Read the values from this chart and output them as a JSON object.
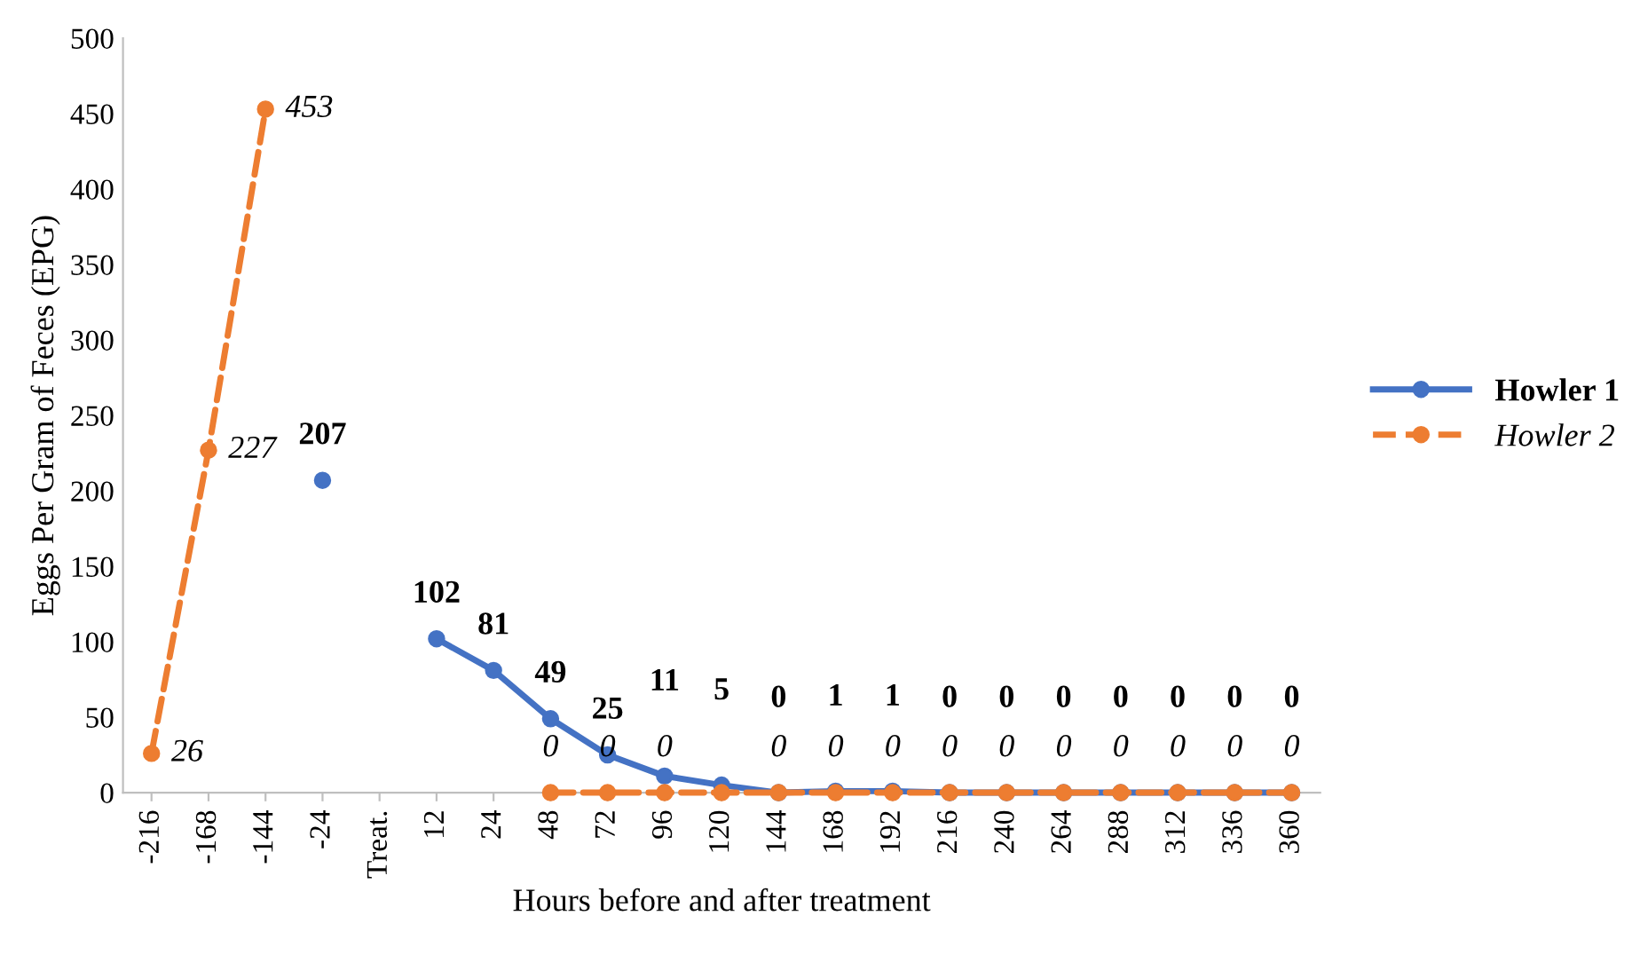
{
  "chart_data": {
    "type": "line",
    "xlabel": "Hours before and after treatment",
    "ylabel": "Eggs Per Gram of Feces (EPG)",
    "categories": [
      "-216",
      "-168",
      "-144",
      "-24",
      "Treat.",
      "12",
      "24",
      "48",
      "72",
      "96",
      "120",
      "144",
      "168",
      "192",
      "216",
      "240",
      "264",
      "288",
      "312",
      "336",
      "360"
    ],
    "series": [
      {
        "name": "Howler 1",
        "color": "#4472c4",
        "line_style": "solid",
        "values": [
          null,
          null,
          null,
          207,
          null,
          102,
          81,
          49,
          25,
          11,
          5,
          0,
          1,
          1,
          0,
          0,
          0,
          0,
          0,
          0,
          0
        ],
        "value_labels": [
          null,
          null,
          null,
          "207",
          null,
          "102",
          "81",
          "49",
          "25",
          "11",
          "5",
          "0",
          "1",
          "1",
          "0",
          "0",
          "0",
          "0",
          "0",
          "0",
          "0"
        ]
      },
      {
        "name": "Howler 2",
        "color": "#ed7d31",
        "line_style": "dashed",
        "values": [
          26,
          227,
          453,
          null,
          null,
          null,
          null,
          0,
          0,
          0,
          0,
          0,
          0,
          0,
          0,
          0,
          0,
          0,
          0,
          0,
          0
        ],
        "value_labels": [
          "26",
          "227",
          "453",
          null,
          null,
          null,
          null,
          "0",
          "0",
          "0",
          null,
          "0",
          "0",
          "0",
          "0",
          "0",
          "0",
          "0",
          "0",
          "0",
          "0"
        ]
      }
    ],
    "marker": "circle",
    "ylim": [
      0,
      500
    ],
    "yticks": [
      0,
      50,
      100,
      150,
      200,
      250,
      300,
      350,
      400,
      450,
      500
    ],
    "grid": false,
    "legend": "right"
  }
}
